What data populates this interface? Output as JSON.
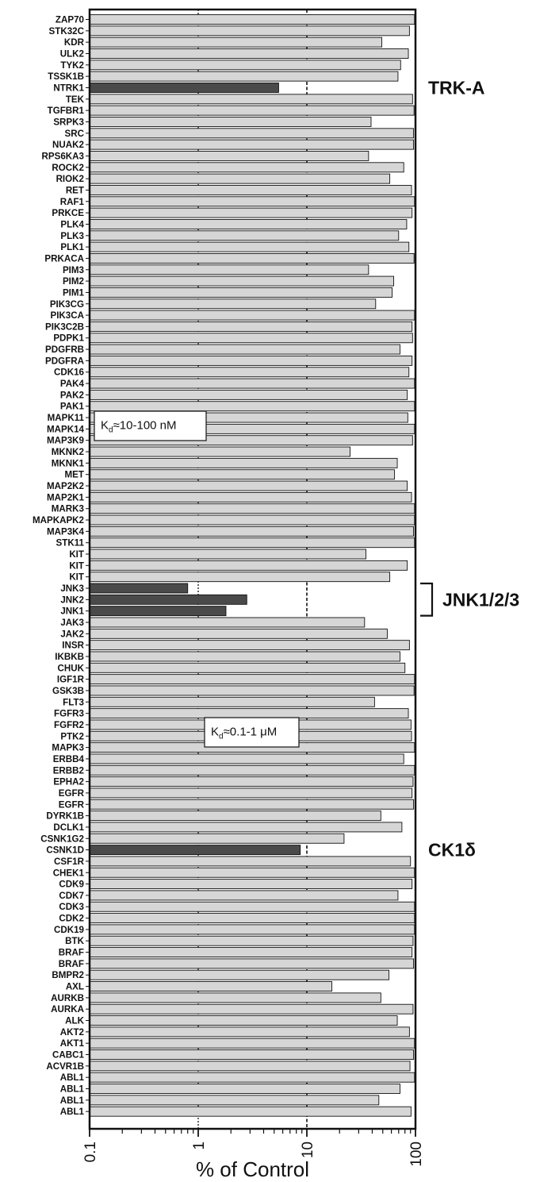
{
  "chart_data": {
    "type": "bar",
    "orientation": "horizontal",
    "x_scale": "log",
    "xlim": [
      0.1,
      100
    ],
    "xlabel": "% of Control",
    "x_ticks": [
      "0.1",
      "1",
      "10",
      "100"
    ],
    "reference_lines": [
      1,
      10
    ],
    "series_style": {
      "low_color": "#4a4a4a",
      "high_color": "#d6d6d6"
    },
    "bars": [
      {
        "label": "ZAP70",
        "value": 98
      },
      {
        "label": "STK32C",
        "value": 88
      },
      {
        "label": "KDR",
        "value": 49
      },
      {
        "label": "ULK2",
        "value": 86
      },
      {
        "label": "TYK2",
        "value": 73
      },
      {
        "label": "TSSK1B",
        "value": 69
      },
      {
        "label": "NTRK1",
        "value": 5.5,
        "highlight": true
      },
      {
        "label": "TEK",
        "value": 94
      },
      {
        "label": "TGFBR1",
        "value": 97
      },
      {
        "label": "SRPK3",
        "value": 39
      },
      {
        "label": "SRC",
        "value": 96
      },
      {
        "label": "NUAK2",
        "value": 96
      },
      {
        "label": "RPS6KA3",
        "value": 37
      },
      {
        "label": "ROCK2",
        "value": 78
      },
      {
        "label": "RIOK2",
        "value": 58
      },
      {
        "label": "RET",
        "value": 92
      },
      {
        "label": "RAF1",
        "value": 98
      },
      {
        "label": "PRKCE",
        "value": 93
      },
      {
        "label": "PLK4",
        "value": 83
      },
      {
        "label": "PLK3",
        "value": 70
      },
      {
        "label": "PLK1",
        "value": 87
      },
      {
        "label": "PRKACA",
        "value": 97
      },
      {
        "label": "PIM3",
        "value": 37
      },
      {
        "label": "PIM2",
        "value": 63
      },
      {
        "label": "PIM1",
        "value": 61
      },
      {
        "label": "PIK3CG",
        "value": 43
      },
      {
        "label": "PIK3CA",
        "value": 98
      },
      {
        "label": "PIK3C2B",
        "value": 93
      },
      {
        "label": "PDPK1",
        "value": 94
      },
      {
        "label": "PDGFRB",
        "value": 72
      },
      {
        "label": "PDGFRA",
        "value": 93
      },
      {
        "label": "CDK16",
        "value": 87
      },
      {
        "label": "PAK4",
        "value": 98
      },
      {
        "label": "PAK2",
        "value": 84
      },
      {
        "label": "PAK1",
        "value": 98
      },
      {
        "label": "MAPK11",
        "value": 85
      },
      {
        "label": "MAPK14",
        "value": 98
      },
      {
        "label": "MAP3K9",
        "value": 94
      },
      {
        "label": "MKNK2",
        "value": 25
      },
      {
        "label": "MKNK1",
        "value": 68
      },
      {
        "label": "MET",
        "value": 64
      },
      {
        "label": "MAP2K2",
        "value": 84
      },
      {
        "label": "MAP2K1",
        "value": 92
      },
      {
        "label": "MARK3",
        "value": 98
      },
      {
        "label": "MAPKAPK2",
        "value": 98
      },
      {
        "label": "MAP3K4",
        "value": 96
      },
      {
        "label": "STK11",
        "value": 98
      },
      {
        "label": "KIT",
        "value": 35
      },
      {
        "label": "KIT",
        "value": 84
      },
      {
        "label": "KIT",
        "value": 58
      },
      {
        "label": "JNK3",
        "value": 0.8,
        "highlight": true
      },
      {
        "label": "JNK2",
        "value": 2.8,
        "highlight": true
      },
      {
        "label": "JNK1",
        "value": 1.8,
        "highlight": true
      },
      {
        "label": "JAK3",
        "value": 34
      },
      {
        "label": "JAK2",
        "value": 55
      },
      {
        "label": "INSR",
        "value": 88
      },
      {
        "label": "IKBKB",
        "value": 72
      },
      {
        "label": "CHUK",
        "value": 80
      },
      {
        "label": "IGF1R",
        "value": 98
      },
      {
        "label": "GSK3B",
        "value": 97
      },
      {
        "label": "FLT3",
        "value": 42
      },
      {
        "label": "FGFR3",
        "value": 86
      },
      {
        "label": "FGFR2",
        "value": 91
      },
      {
        "label": "PTK2",
        "value": 92
      },
      {
        "label": "MAPK3",
        "value": 98
      },
      {
        "label": "ERBB4",
        "value": 78
      },
      {
        "label": "ERBB2",
        "value": 98
      },
      {
        "label": "EPHA2",
        "value": 95
      },
      {
        "label": "EGFR",
        "value": 93
      },
      {
        "label": "EGFR",
        "value": 96
      },
      {
        "label": "DYRK1B",
        "value": 48
      },
      {
        "label": "DCLK1",
        "value": 75
      },
      {
        "label": "CSNK1G2",
        "value": 22
      },
      {
        "label": "CSNK1D",
        "value": 8.7,
        "highlight": true
      },
      {
        "label": "CSF1R",
        "value": 90
      },
      {
        "label": "CHEK1",
        "value": 98
      },
      {
        "label": "CDK9",
        "value": 93
      },
      {
        "label": "CDK7",
        "value": 69
      },
      {
        "label": "CDK3",
        "value": 98
      },
      {
        "label": "CDK2",
        "value": 98
      },
      {
        "label": "CDK19",
        "value": 98
      },
      {
        "label": "BTK",
        "value": 95
      },
      {
        "label": "BRAF",
        "value": 93
      },
      {
        "label": "BRAF",
        "value": 96
      },
      {
        "label": "BMPR2",
        "value": 57
      },
      {
        "label": "AXL",
        "value": 17
      },
      {
        "label": "AURKB",
        "value": 48
      },
      {
        "label": "AURKA",
        "value": 95
      },
      {
        "label": "ALK",
        "value": 68
      },
      {
        "label": "AKT2",
        "value": 88
      },
      {
        "label": "AKT1",
        "value": 98
      },
      {
        "label": "CABC1",
        "value": 96
      },
      {
        "label": "ACVR1B",
        "value": 89
      },
      {
        "label": "ABL1",
        "value": 98
      },
      {
        "label": "ABL1",
        "value": 72
      },
      {
        "label": "ABL1",
        "value": 46
      },
      {
        "label": "ABL1",
        "value": 91
      }
    ],
    "annotations": [
      {
        "text": "TRK-A",
        "target": "NTRK1"
      },
      {
        "text": "JNK1/2/3",
        "target": "JNK2",
        "bracket": true
      },
      {
        "text": "CK1δ",
        "target": "CSNK1D"
      }
    ],
    "boxes": [
      {
        "main": "K",
        "sub": "d",
        "rest": "≈10-100 nM"
      },
      {
        "main": "K",
        "sub": "d",
        "rest": "≈0.1-1 μM"
      }
    ]
  }
}
